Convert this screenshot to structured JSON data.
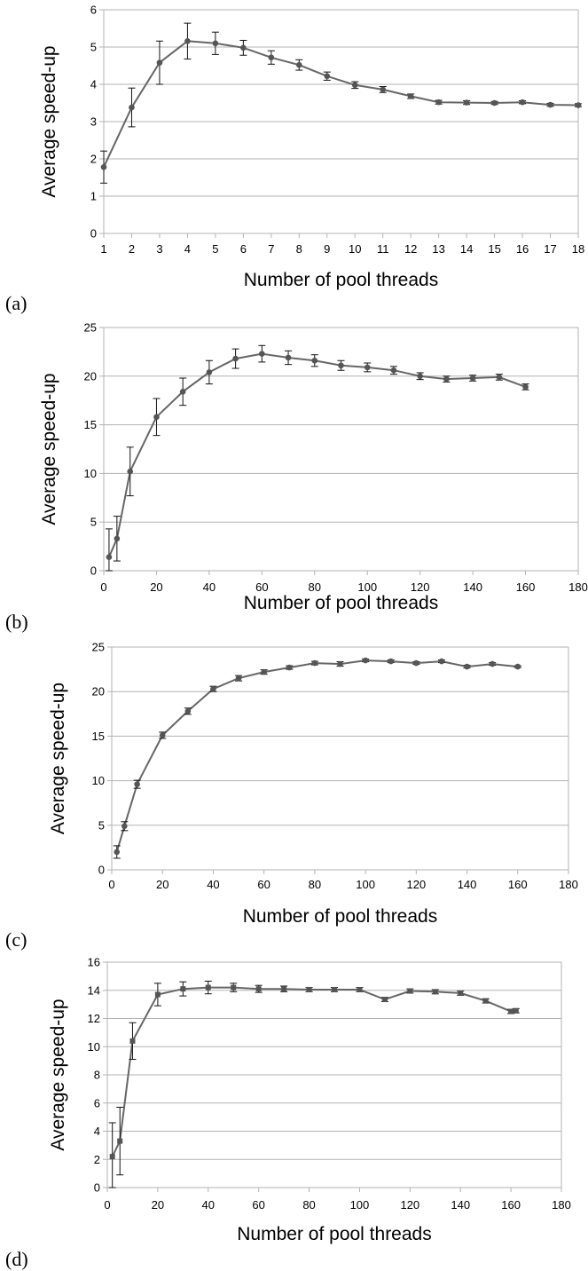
{
  "chart_data": [
    {
      "type": "line",
      "panel_label": "(a)",
      "xlabel": "Number of pool threads",
      "ylabel": "Average speed-up",
      "xlim": [
        1,
        18
      ],
      "ylim": [
        0,
        6
      ],
      "x_ticks": [
        1,
        2,
        3,
        4,
        5,
        6,
        7,
        8,
        9,
        10,
        11,
        12,
        13,
        14,
        15,
        16,
        17,
        18
      ],
      "y_ticks": [
        0,
        1,
        2,
        3,
        4,
        5,
        6
      ],
      "grid": true,
      "marker": "circle",
      "series": [
        {
          "x": [
            1,
            2,
            3,
            4,
            5,
            6,
            7,
            8,
            9,
            10,
            11,
            12,
            13,
            14,
            15,
            16,
            17,
            18
          ],
          "y": [
            1.78,
            3.38,
            4.58,
            5.16,
            5.1,
            4.98,
            4.72,
            4.52,
            4.22,
            3.98,
            3.86,
            3.68,
            3.52,
            3.51,
            3.5,
            3.52,
            3.45,
            3.44
          ],
          "err": [
            0.43,
            0.52,
            0.58,
            0.48,
            0.3,
            0.2,
            0.18,
            0.14,
            0.11,
            0.09,
            0.08,
            0.06,
            0.05,
            0.05,
            0.04,
            0.04,
            0.04,
            0.04
          ]
        }
      ]
    },
    {
      "type": "line",
      "panel_label": "(b)",
      "xlabel": "Number of pool threads",
      "ylabel": "Average speed-up",
      "xlim": [
        0,
        180
      ],
      "ylim": [
        0,
        25
      ],
      "x_ticks": [
        0,
        20,
        40,
        60,
        80,
        100,
        120,
        140,
        160,
        180
      ],
      "y_ticks": [
        0,
        5,
        10,
        15,
        20,
        25
      ],
      "grid": true,
      "marker": "circle",
      "series": [
        {
          "x": [
            2,
            5,
            10,
            20,
            30,
            40,
            50,
            60,
            70,
            80,
            90,
            100,
            110,
            120,
            130,
            140,
            150,
            160
          ],
          "y": [
            1.4,
            3.3,
            10.2,
            15.8,
            18.4,
            20.4,
            21.8,
            22.3,
            21.9,
            21.6,
            21.1,
            20.9,
            20.6,
            20.0,
            19.7,
            19.8,
            19.9,
            18.9
          ],
          "err": [
            2.9,
            2.3,
            2.5,
            1.9,
            1.4,
            1.2,
            1.0,
            0.85,
            0.7,
            0.6,
            0.5,
            0.45,
            0.4,
            0.35,
            0.3,
            0.3,
            0.3,
            0.3
          ]
        }
      ]
    },
    {
      "type": "line",
      "panel_label": "(c)",
      "xlabel": "Number of pool threads",
      "ylabel": "Average speed-up",
      "xlim": [
        0,
        180
      ],
      "ylim": [
        0,
        25
      ],
      "x_ticks": [
        0,
        20,
        40,
        60,
        80,
        100,
        120,
        140,
        160,
        180
      ],
      "y_ticks": [
        0,
        5,
        10,
        15,
        20,
        25
      ],
      "grid": true,
      "marker": "circle",
      "series": [
        {
          "x": [
            2,
            5,
            10,
            20,
            30,
            40,
            50,
            60,
            70,
            80,
            90,
            100,
            110,
            120,
            130,
            140,
            150,
            160
          ],
          "y": [
            2.0,
            4.9,
            9.6,
            15.1,
            17.8,
            20.3,
            21.5,
            22.2,
            22.7,
            23.2,
            23.1,
            23.5,
            23.4,
            23.2,
            23.4,
            22.8,
            23.1,
            22.8
          ],
          "err": [
            0.7,
            0.5,
            0.45,
            0.35,
            0.35,
            0.3,
            0.3,
            0.25,
            0.2,
            0.2,
            0.25,
            0.15,
            0.15,
            0.15,
            0.15,
            0.15,
            0.15,
            0.1
          ]
        }
      ]
    },
    {
      "type": "line",
      "panel_label": "(d)",
      "xlabel": "Number of pool threads",
      "ylabel": "Average speed-up",
      "xlim": [
        0,
        180
      ],
      "ylim": [
        0,
        16
      ],
      "x_ticks": [
        0,
        20,
        40,
        60,
        80,
        100,
        120,
        140,
        160,
        180
      ],
      "y_ticks": [
        0,
        2,
        4,
        6,
        8,
        10,
        12,
        14,
        16
      ],
      "grid": true,
      "marker": "square",
      "series": [
        {
          "x": [
            2,
            5,
            10,
            20,
            30,
            40,
            50,
            60,
            70,
            80,
            90,
            100,
            110,
            120,
            130,
            140,
            150,
            160,
            162
          ],
          "y": [
            2.2,
            3.3,
            10.4,
            13.7,
            14.1,
            14.2,
            14.2,
            14.1,
            14.1,
            14.05,
            14.05,
            14.05,
            13.35,
            13.95,
            13.9,
            13.8,
            13.25,
            12.5,
            12.55
          ],
          "err": [
            2.4,
            2.4,
            1.3,
            0.8,
            0.5,
            0.45,
            0.3,
            0.25,
            0.2,
            0.15,
            0.15,
            0.15,
            0.15,
            0.15,
            0.15,
            0.15,
            0.15,
            0.15,
            0.15
          ]
        }
      ]
    }
  ]
}
